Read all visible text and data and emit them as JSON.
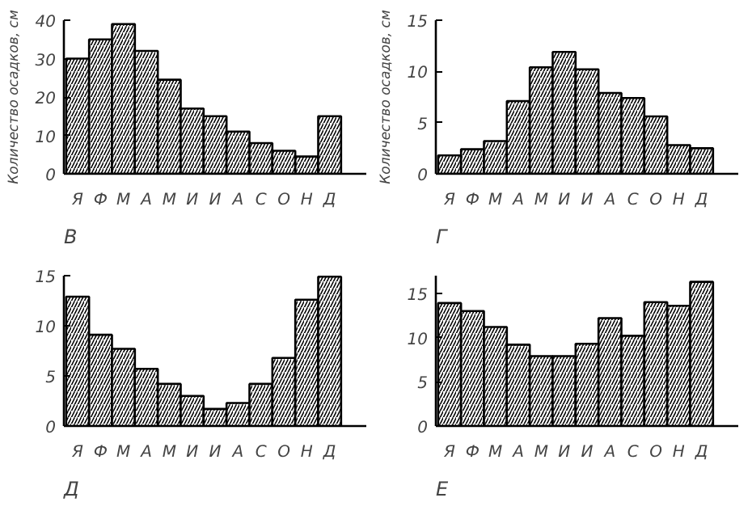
{
  "chart_data": [
    {
      "type": "bar",
      "title": "В",
      "ylabel": "Количество осадков, см",
      "categories": [
        "Я",
        "Ф",
        "М",
        "А",
        "М",
        "И",
        "И",
        "А",
        "С",
        "О",
        "Н",
        "Д"
      ],
      "values": [
        30,
        35,
        39,
        32,
        24.5,
        17,
        15,
        11,
        8,
        6,
        4.5,
        15
      ],
      "color": "#000000",
      "ylim": [
        0,
        40
      ],
      "yticks": [
        0,
        10,
        20,
        30,
        40
      ],
      "grid": false
    },
    {
      "type": "bar",
      "title": "Г",
      "ylabel": "Количество осадков, см",
      "categories": [
        "Я",
        "Ф",
        "М",
        "А",
        "М",
        "И",
        "И",
        "А",
        "С",
        "О",
        "Н",
        "Д"
      ],
      "values": [
        1.8,
        2.4,
        3.2,
        7.1,
        10.4,
        11.9,
        10.2,
        7.9,
        7.4,
        5.6,
        2.8,
        2.5
      ],
      "color": "#000000",
      "ylim": [
        0,
        15
      ],
      "yticks": [
        0,
        5,
        10,
        15
      ],
      "grid": false
    },
    {
      "type": "bar",
      "title": "Д",
      "categories": [
        "Я",
        "Ф",
        "М",
        "А",
        "М",
        "И",
        "И",
        "А",
        "С",
        "О",
        "Н",
        "Д"
      ],
      "values": [
        12.9,
        9.1,
        7.7,
        5.7,
        4.2,
        3,
        1.7,
        2.3,
        4.2,
        6.8,
        12.6,
        14.9
      ],
      "color": "#000000",
      "ylim": [
        0,
        15
      ],
      "yticks": [
        0,
        5,
        10,
        15
      ],
      "grid": false
    },
    {
      "type": "bar",
      "title": "Е",
      "categories": [
        "Я",
        "Ф",
        "М",
        "А",
        "М",
        "И",
        "И",
        "А",
        "С",
        "О",
        "Н",
        "Д"
      ],
      "values": [
        13.9,
        13,
        11.2,
        9.2,
        7.9,
        7.9,
        9.3,
        12.2,
        10.2,
        14,
        13.6,
        16.3
      ],
      "color": "#000000",
      "ylim": [
        0,
        17
      ],
      "yticks": [
        0,
        5,
        10,
        15
      ],
      "grid": false
    }
  ]
}
